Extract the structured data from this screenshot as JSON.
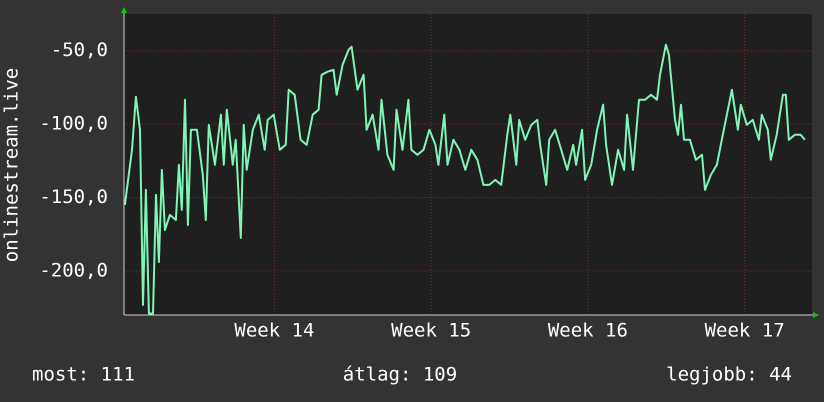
{
  "chart_data": {
    "type": "line",
    "y_label": "onlinestream.live",
    "xlim": [
      13.04,
      17.43
    ],
    "xticks": [
      {
        "value": 14,
        "label": "Week 14"
      },
      {
        "value": 15,
        "label": "Week 15"
      },
      {
        "value": 16,
        "label": "Week 16"
      },
      {
        "value": 17,
        "label": "Week 17"
      }
    ],
    "ylim": [
      -230,
      -25
    ],
    "yticks": [
      {
        "value": -200,
        "label": "-200,0"
      },
      {
        "value": -150,
        "label": "-150,0"
      },
      {
        "value": -100,
        "label": "-100,0"
      },
      {
        "value": -50,
        "label": "-50,0"
      }
    ],
    "grid": true,
    "x": [
      13.046,
      13.091,
      13.116,
      13.142,
      13.161,
      13.18,
      13.199,
      13.225,
      13.244,
      13.263,
      13.282,
      13.301,
      13.333,
      13.371,
      13.39,
      13.409,
      13.429,
      13.448,
      13.467,
      13.505,
      13.543,
      13.562,
      13.581,
      13.62,
      13.658,
      13.677,
      13.696,
      13.734,
      13.753,
      13.785,
      13.804,
      13.823,
      13.862,
      13.9,
      13.938,
      13.957,
      13.995,
      14.034,
      14.072,
      14.091,
      14.129,
      14.167,
      14.206,
      14.244,
      14.282,
      14.301,
      14.339,
      14.377,
      14.397,
      14.435,
      14.473,
      14.492,
      14.53,
      14.569,
      14.588,
      14.626,
      14.664,
      14.683,
      14.721,
      14.76,
      14.779,
      14.817,
      14.855,
      14.874,
      14.912,
      14.951,
      14.989,
      15.027,
      15.046,
      15.084,
      15.104,
      15.142,
      15.18,
      15.218,
      15.256,
      15.295,
      15.333,
      15.371,
      15.409,
      15.447,
      15.486,
      15.505,
      15.543,
      15.562,
      15.6,
      15.639,
      15.677,
      15.696,
      15.734,
      15.753,
      15.791,
      15.83,
      15.868,
      15.906,
      15.925,
      15.963,
      15.982,
      16.021,
      16.059,
      16.097,
      16.116,
      16.154,
      16.193,
      16.231,
      16.25,
      16.288,
      16.326,
      16.365,
      16.403,
      16.441,
      16.46,
      16.498,
      16.517,
      16.556,
      16.575,
      16.594,
      16.613,
      16.651,
      16.689,
      16.728,
      16.747,
      16.785,
      16.823,
      16.861,
      16.9,
      16.919,
      16.957,
      16.976,
      17.014,
      17.052,
      17.091,
      17.11,
      17.148,
      17.167,
      17.205,
      17.244,
      17.263,
      17.282,
      17.32,
      17.358,
      17.384
    ],
    "series": [
      {
        "color": "#7ff5b8",
        "values": [
          -155.0,
          -117.5,
          -81.4,
          -103.9,
          -223.2,
          -144.8,
          -229,
          -229,
          -148.2,
          -193.9,
          -131.2,
          -172.1,
          -161.8,
          -165.3,
          -127.7,
          -158.4,
          -83.4,
          -168.7,
          -103.9,
          -103.9,
          -134.6,
          -165.3,
          -100.5,
          -127.7,
          -93.6,
          -127.7,
          -90.2,
          -127.7,
          -110.7,
          -177.5,
          -100.5,
          -131.2,
          -103.9,
          -93.6,
          -117.5,
          -97.1,
          -93.6,
          -117.5,
          -114.1,
          -76.6,
          -80.0,
          -110.7,
          -114.1,
          -93.6,
          -90.2,
          -66.4,
          -64.3,
          -63.0,
          -80.0,
          -59.5,
          -49.3,
          -47.3,
          -76.6,
          -66.4,
          -103.9,
          -93.6,
          -117.5,
          -83.4,
          -120.9,
          -131.2,
          -90.2,
          -117.5,
          -83.4,
          -117.5,
          -120.9,
          -117.5,
          -103.9,
          -114.1,
          -127.7,
          -93.6,
          -127.7,
          -110.7,
          -117.5,
          -131.2,
          -117.5,
          -124.3,
          -141.4,
          -141.4,
          -138.0,
          -141.4,
          -107.3,
          -93.6,
          -127.7,
          -97.1,
          -110.7,
          -100.5,
          -97.1,
          -114.1,
          -141.4,
          -110.7,
          -103.9,
          -117.5,
          -131.2,
          -114.1,
          -127.7,
          -103.9,
          -138.0,
          -127.7,
          -103.9,
          -86.8,
          -114.1,
          -141.4,
          -117.5,
          -131.2,
          -93.6,
          -131.2,
          -83.4,
          -83.4,
          -80.0,
          -83.4,
          -66.4,
          -45.9,
          -52.7,
          -97.1,
          -107.3,
          -86.8,
          -110.7,
          -110.7,
          -124.3,
          -120.9,
          -144.8,
          -134.6,
          -127.7,
          -107.3,
          -86.8,
          -76.6,
          -103.9,
          -86.8,
          -100.5,
          -97.1,
          -110.7,
          -93.6,
          -103.9,
          -124.3,
          -107.3,
          -80.0,
          -80.0,
          -110.7,
          -107.3,
          -107.3,
          -110.7
        ]
      }
    ],
    "stats": [
      "most: 111",
      "átlag: 109",
      "legjobb: 44"
    ]
  }
}
